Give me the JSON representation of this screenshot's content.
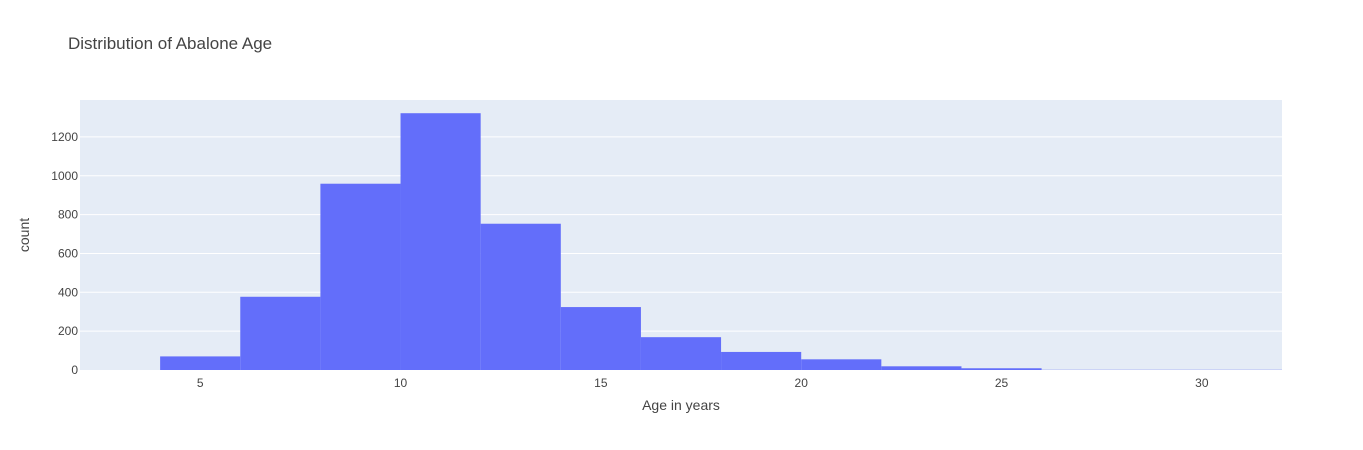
{
  "chart_data": {
    "type": "bar",
    "title": "Distribution of Abalone Age",
    "xlabel": "Age in years",
    "ylabel": "count",
    "xlim": [
      2,
      32
    ],
    "ylim": [
      0,
      1390
    ],
    "xticks": [
      5,
      10,
      15,
      20,
      25,
      30
    ],
    "yticks": [
      0,
      200,
      400,
      600,
      800,
      1000,
      1200
    ],
    "bins": [
      {
        "x0": 4,
        "x1": 6,
        "count": 70
      },
      {
        "x0": 6,
        "x1": 8,
        "count": 377
      },
      {
        "x0": 8,
        "x1": 10,
        "count": 959
      },
      {
        "x0": 10,
        "x1": 12,
        "count": 1322
      },
      {
        "x0": 12,
        "x1": 14,
        "count": 753
      },
      {
        "x0": 14,
        "x1": 16,
        "count": 324
      },
      {
        "x0": 16,
        "x1": 18,
        "count": 169
      },
      {
        "x0": 18,
        "x1": 20,
        "count": 93
      },
      {
        "x0": 20,
        "x1": 22,
        "count": 55
      },
      {
        "x0": 22,
        "x1": 24,
        "count": 19
      },
      {
        "x0": 24,
        "x1": 26,
        "count": 9
      },
      {
        "x0": 26,
        "x1": 28,
        "count": 1
      },
      {
        "x0": 28,
        "x1": 30,
        "count": 1
      },
      {
        "x0": 30,
        "x1": 32,
        "count": 1
      }
    ],
    "bar_color": "#636efa",
    "plot_bgcolor": "#e5ecf6",
    "gridline_color": "#ffffff",
    "grid": true,
    "legend": "none"
  }
}
